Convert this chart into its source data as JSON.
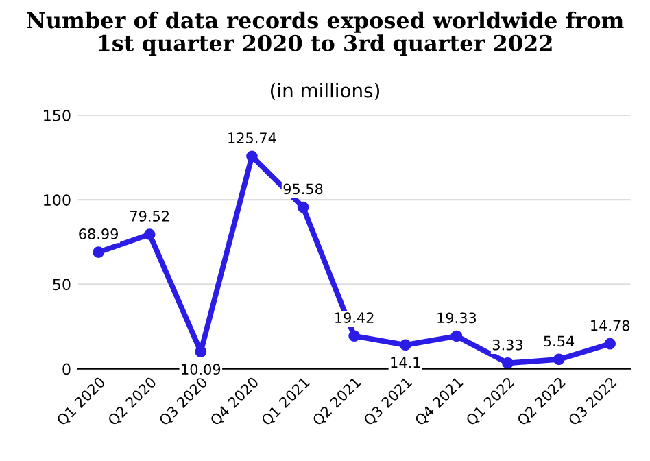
{
  "chart_data": {
    "type": "line",
    "title": "Number of data records exposed worldwide from\n1st quarter 2020 to 3rd quarter 2022",
    "subtitle": "(in millions)",
    "categories": [
      "Q1 2020",
      "Q2 2020",
      "Q3 2020",
      "Q4 2020",
      "Q1 2021",
      "Q2 2021",
      "Q3 2021",
      "Q4 2021",
      "Q1 2022",
      "Q2 2022",
      "Q3 2022"
    ],
    "series": [
      {
        "color": "#2b1de6",
        "values": [
          68.99,
          79.52,
          10.09,
          125.74,
          95.58,
          19.42,
          14.1,
          19.33,
          3.33,
          5.54,
          14.78
        ]
      }
    ],
    "ylim": [
      0,
      150
    ],
    "yticks": [
      0,
      50,
      100,
      150
    ],
    "grid": "y",
    "marker": "circle",
    "line_style": "solid",
    "data_labels": true
  }
}
